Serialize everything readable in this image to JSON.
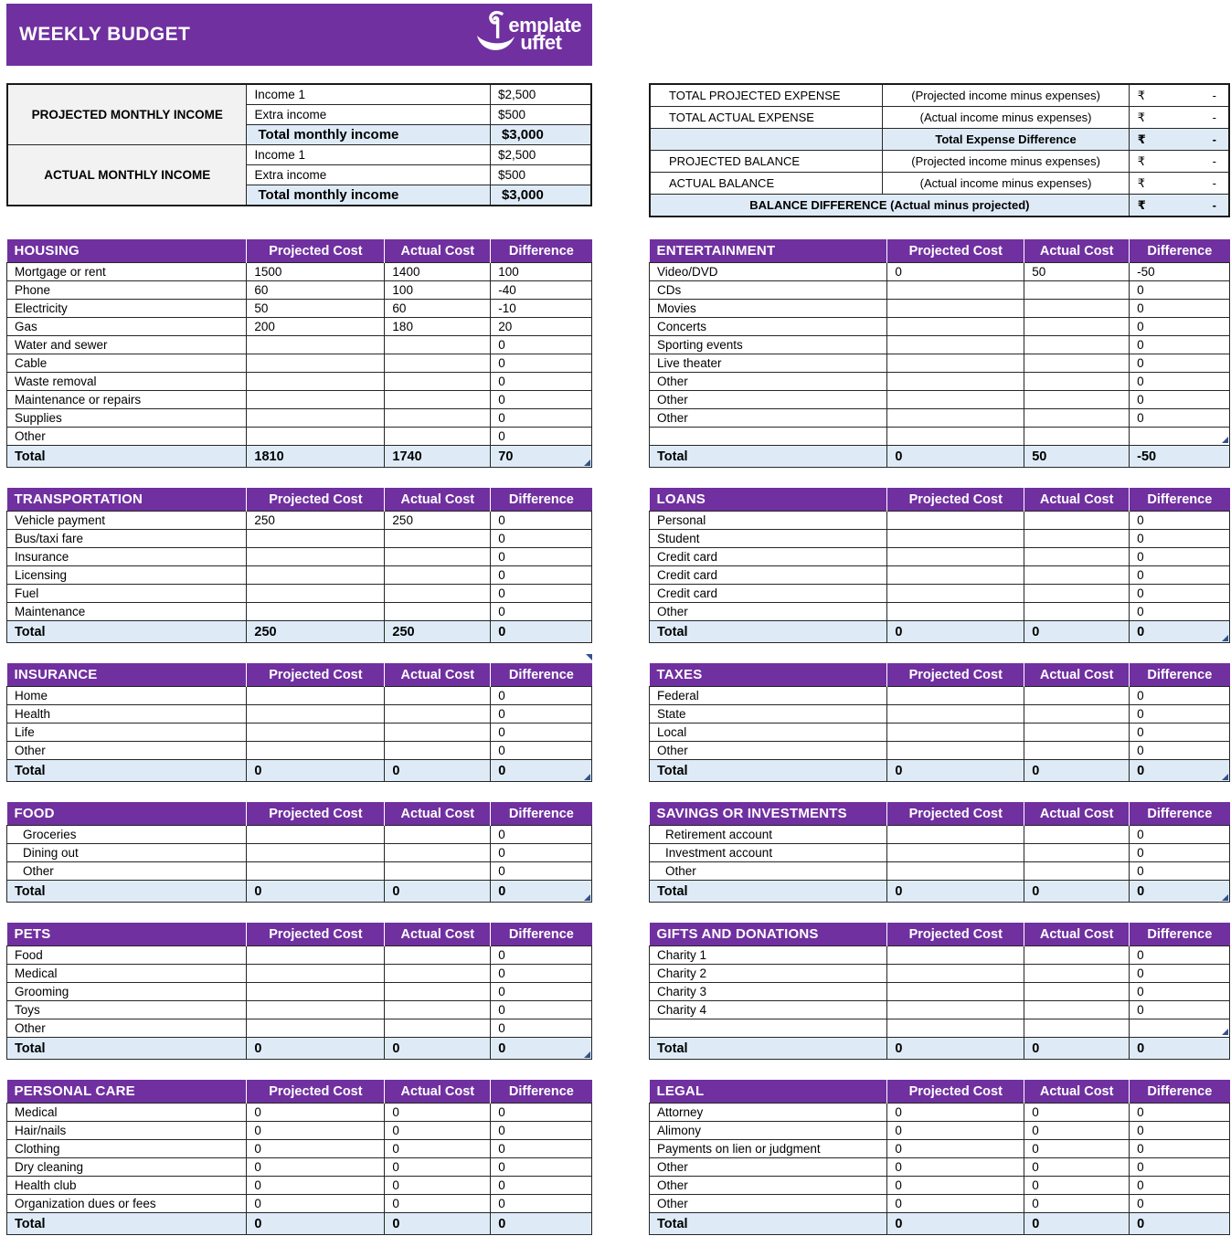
{
  "header": {
    "title": "WEEKLY BUDGET",
    "logo": {
      "line1": "emplate",
      "line2": "uffet"
    }
  },
  "income": {
    "sections": [
      {
        "label": "PROJECTED MONTHLY INCOME",
        "rows": [
          [
            "Income 1",
            "$2,500"
          ],
          [
            "Extra income",
            "$500"
          ]
        ],
        "total_label": "Total monthly income",
        "total_value": "$3,000"
      },
      {
        "label": "ACTUAL MONTHLY INCOME",
        "rows": [
          [
            "Income 1",
            "$2,500"
          ],
          [
            "Extra income",
            "$500"
          ]
        ],
        "total_label": "Total monthly income",
        "total_value": "$3,000"
      }
    ]
  },
  "summary": {
    "rows": [
      {
        "label": "TOTAL PROJECTED EXPENSE",
        "desc": "(Projected income minus expenses)",
        "currency": "₹",
        "value": "-"
      },
      {
        "label": "TOTAL ACTUAL EXPENSE",
        "desc": "(Actual income minus expenses)",
        "currency": "₹",
        "value": "-"
      },
      {
        "label": "",
        "desc": "Total Expense Difference",
        "currency": "₹",
        "value": "-"
      },
      {
        "label": "PROJECTED BALANCE",
        "desc": "(Projected income minus expenses)",
        "currency": "₹",
        "value": "-"
      },
      {
        "label": "ACTUAL BALANCE",
        "desc": "(Actual income minus expenses)",
        "currency": "₹",
        "value": "-"
      },
      {
        "label": "BALANCE DIFFERENCE (Actual minus projected)",
        "desc": "",
        "currency": "₹",
        "value": "-"
      }
    ]
  },
  "column_headers": [
    "Projected Cost",
    "Actual Cost",
    "Difference"
  ],
  "total_label": "Total",
  "tables": {
    "left": [
      {
        "name": "HOUSING",
        "marker": "total",
        "rows": [
          [
            "Mortgage or rent",
            "1500",
            "1400",
            "100"
          ],
          [
            "Phone",
            "60",
            "100",
            "-40"
          ],
          [
            "Electricity",
            "50",
            "60",
            "-10"
          ],
          [
            "Gas",
            "200",
            "180",
            "20"
          ],
          [
            "Water and sewer",
            "",
            "",
            "0"
          ],
          [
            "Cable",
            "",
            "",
            "0"
          ],
          [
            "Waste removal",
            "",
            "",
            "0"
          ],
          [
            "Maintenance or repairs",
            "",
            "",
            "0"
          ],
          [
            "Supplies",
            "",
            "",
            "0"
          ],
          [
            "Other",
            "",
            "",
            "0"
          ]
        ],
        "total": [
          "1810",
          "1740",
          "70"
        ]
      },
      {
        "name": "TRANSPORTATION",
        "marker": "none",
        "rows": [
          [
            "Vehicle payment",
            "250",
            "250",
            "0"
          ],
          [
            "Bus/taxi fare",
            "",
            "",
            "0"
          ],
          [
            "Insurance",
            "",
            "",
            "0"
          ],
          [
            "Licensing",
            "",
            "",
            "0"
          ],
          [
            "Fuel",
            "",
            "",
            "0"
          ],
          [
            "Maintenance",
            "",
            "",
            "0"
          ]
        ],
        "total": [
          "250",
          "250",
          "0"
        ]
      },
      {
        "name": "INSURANCE",
        "marker": "total",
        "marker_top": true,
        "rows": [
          [
            "Home",
            "",
            "",
            "0"
          ],
          [
            "Health",
            "",
            "",
            "0"
          ],
          [
            "Life",
            "",
            "",
            "0"
          ],
          [
            "Other",
            "",
            "",
            "0"
          ]
        ],
        "total": [
          "0",
          "0",
          "0"
        ]
      },
      {
        "name": "FOOD",
        "marker": "total",
        "indent": true,
        "rows": [
          [
            "Groceries",
            "",
            "",
            "0"
          ],
          [
            "Dining out",
            "",
            "",
            "0"
          ],
          [
            "Other",
            "",
            "",
            "0"
          ]
        ],
        "total": [
          "0",
          "0",
          "0"
        ]
      },
      {
        "name": "PETS",
        "marker": "total",
        "rows": [
          [
            "Food",
            "",
            "",
            "0"
          ],
          [
            "Medical",
            "",
            "",
            "0"
          ],
          [
            "Grooming",
            "",
            "",
            "0"
          ],
          [
            "Toys",
            "",
            "",
            "0"
          ],
          [
            "Other",
            "",
            "",
            "0"
          ]
        ],
        "total": [
          "0",
          "0",
          "0"
        ]
      },
      {
        "name": "PERSONAL CARE",
        "marker": "none",
        "rows": [
          [
            "Medical",
            "0",
            "0",
            "0"
          ],
          [
            "Hair/nails",
            "0",
            "0",
            "0"
          ],
          [
            "Clothing",
            "0",
            "0",
            "0"
          ],
          [
            "Dry cleaning",
            "0",
            "0",
            "0"
          ],
          [
            "Health club",
            "0",
            "0",
            "0"
          ],
          [
            "Organization dues or fees",
            "0",
            "0",
            "0"
          ]
        ],
        "total": [
          "0",
          "0",
          "0"
        ]
      }
    ],
    "right": [
      {
        "name": "ENTERTAINMENT",
        "marker": "empty-row",
        "rows": [
          [
            "Video/DVD",
            "0",
            "50",
            "-50"
          ],
          [
            "CDs",
            "",
            "",
            "0"
          ],
          [
            "Movies",
            "",
            "",
            "0"
          ],
          [
            "Concerts",
            "",
            "",
            "0"
          ],
          [
            "Sporting events",
            "",
            "",
            "0"
          ],
          [
            "Live theater",
            "",
            "",
            "0"
          ],
          [
            "Other",
            "",
            "",
            "0"
          ],
          [
            "Other",
            "",
            "",
            "0"
          ],
          [
            "Other",
            "",
            "",
            "0"
          ],
          [
            "",
            "",
            "",
            ""
          ]
        ],
        "total": [
          "0",
          "50",
          "-50"
        ]
      },
      {
        "name": "LOANS",
        "marker": "total",
        "rows": [
          [
            "Personal",
            "",
            "",
            "0"
          ],
          [
            "Student",
            "",
            "",
            "0"
          ],
          [
            "Credit card",
            "",
            "",
            "0"
          ],
          [
            "Credit card",
            "",
            "",
            "0"
          ],
          [
            "Credit card",
            "",
            "",
            "0"
          ],
          [
            "Other",
            "",
            "",
            "0"
          ]
        ],
        "total": [
          "0",
          "0",
          "0"
        ]
      },
      {
        "name": "TAXES",
        "marker": "total",
        "rows": [
          [
            "Federal",
            "",
            "",
            "0"
          ],
          [
            "State",
            "",
            "",
            "0"
          ],
          [
            "Local",
            "",
            "",
            "0"
          ],
          [
            "Other",
            "",
            "",
            "0"
          ]
        ],
        "total": [
          "0",
          "0",
          "0"
        ]
      },
      {
        "name": "SAVINGS OR INVESTMENTS",
        "marker": "total",
        "indent": true,
        "rows": [
          [
            "Retirement account",
            "",
            "",
            "0"
          ],
          [
            "Investment account",
            "",
            "",
            "0"
          ],
          [
            "Other",
            "",
            "",
            "0"
          ]
        ],
        "total": [
          "0",
          "0",
          "0"
        ]
      },
      {
        "name": "GIFTS AND DONATIONS",
        "marker": "empty-row",
        "rows": [
          [
            "Charity 1",
            "",
            "",
            "0"
          ],
          [
            "Charity 2",
            "",
            "",
            "0"
          ],
          [
            "Charity 3",
            "",
            "",
            "0"
          ],
          [
            "Charity 4",
            "",
            "",
            "0"
          ],
          [
            "",
            "",
            "",
            ""
          ]
        ],
        "total": [
          "0",
          "0",
          "0"
        ]
      },
      {
        "name": "LEGAL",
        "marker": "none",
        "rows": [
          [
            "Attorney",
            "0",
            "0",
            "0"
          ],
          [
            "Alimony",
            "0",
            "0",
            "0"
          ],
          [
            "Payments on lien or judgment",
            "0",
            "0",
            "0"
          ],
          [
            "Other",
            "0",
            "0",
            "0"
          ],
          [
            "Other",
            "0",
            "0",
            "0"
          ],
          [
            "Other",
            "0",
            "0",
            "0"
          ]
        ],
        "total": [
          "0",
          "0",
          "0"
        ]
      }
    ]
  },
  "colors": {
    "banner_purple": "#7030A0",
    "total_row_blue": "#DEEBF7",
    "income_label_gray": "#F2F2F2",
    "corner_marker_blue": "#33518E",
    "grid_border": "#262626"
  }
}
